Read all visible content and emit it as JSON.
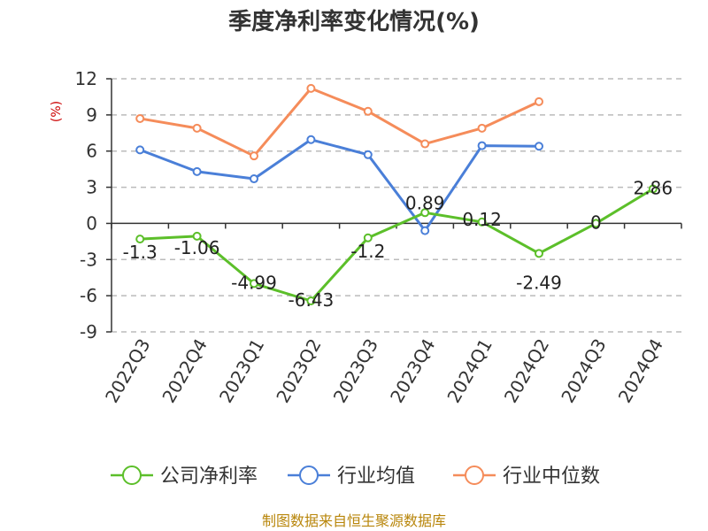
{
  "chart_data": {
    "type": "line",
    "title": "季度净利率变化情况(%)",
    "ylabel": "(%)",
    "xlabel": "",
    "categories": [
      "2022Q3",
      "2022Q4",
      "2023Q1",
      "2023Q2",
      "2023Q3",
      "2023Q4",
      "2024Q1",
      "2024Q2",
      "2024Q3",
      "2024Q4"
    ],
    "ylim": [
      -9,
      12
    ],
    "yticks": [
      12,
      9,
      6,
      3,
      0,
      -3,
      -6,
      -9
    ],
    "ytick_labels": [
      "12",
      "9",
      "6",
      "3",
      "0",
      "-3",
      "-6",
      "-9"
    ],
    "grid": true,
    "legend_position": "bottom",
    "series": [
      {
        "name": "公司净利率",
        "color": "#5cbf2a",
        "values": [
          -1.3,
          -1.06,
          -4.99,
          -6.43,
          -1.2,
          0.89,
          0.12,
          -2.49,
          0,
          2.86
        ],
        "labels": [
          "-1.3",
          "-1.06",
          "-4.99",
          "-6.43",
          "-1.2",
          "0.89",
          "0.12",
          "-2.49",
          "0",
          "2.86"
        ]
      },
      {
        "name": "行业均值",
        "color": "#4a7fd8",
        "values": [
          6.1,
          4.3,
          3.7,
          6.95,
          5.7,
          -0.6,
          6.45,
          6.4,
          null,
          null
        ]
      },
      {
        "name": "行业中位数",
        "color": "#f58c5a",
        "values": [
          8.7,
          7.9,
          5.6,
          11.2,
          9.3,
          6.6,
          7.9,
          10.1,
          null,
          null
        ]
      }
    ]
  },
  "footer": {
    "source": "制图数据来自恒生聚源数据库"
  }
}
